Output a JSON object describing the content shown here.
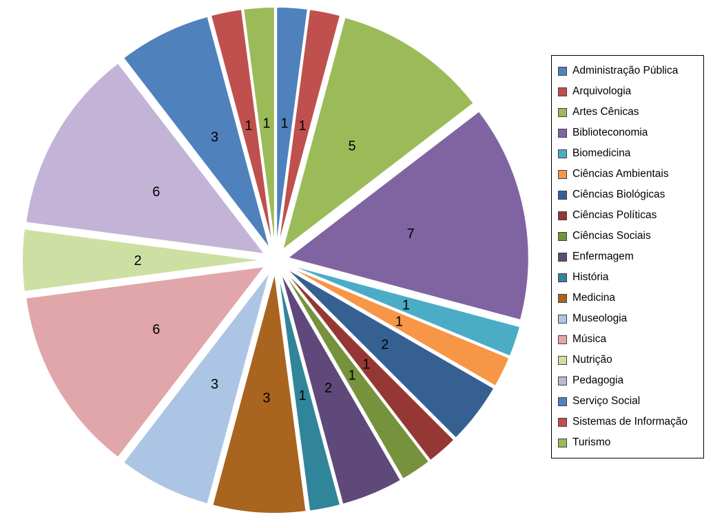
{
  "chart_data": {
    "type": "pie",
    "title": "",
    "categories": [
      "Administração Pública",
      "Arquivologia",
      "Artes Cênicas",
      "Biblioteconomia",
      "Biomedicina",
      "Ciências Ambientais",
      "Ciências Biológicas",
      "Ciências Políticas",
      "Ciências Sociais",
      "Enfermagem",
      "História",
      "Medicina",
      "Museologia",
      "Música",
      "Nutrição",
      "Pedagogia",
      "Serviço Social",
      "Sistemas de Informação",
      "Turismo"
    ],
    "values": [
      1,
      1,
      5,
      7,
      1,
      1,
      2,
      1,
      1,
      2,
      1,
      3,
      3,
      6,
      2,
      6,
      3,
      1,
      1
    ],
    "colors": [
      "#4F81BD",
      "#C0504D",
      "#9BBB59",
      "#8064A2",
      "#4BACC6",
      "#F79646",
      "#366092",
      "#953734",
      "#76923C",
      "#5F497A",
      "#31859B",
      "#A9641F",
      "#ADC5E5",
      "#E0A6A9",
      "#CEDFA4",
      "#C3B4D7",
      "#4F81BD",
      "#C0504D",
      "#9BBB59"
    ],
    "total": 48,
    "data_labels": "value",
    "data_label_color": "#000000",
    "legend_position": "right",
    "legend_border_color": "#000000",
    "background_color": "#FFFFFF",
    "start_angle_deg": 0,
    "direction": "clockwise",
    "exploded": true
  }
}
